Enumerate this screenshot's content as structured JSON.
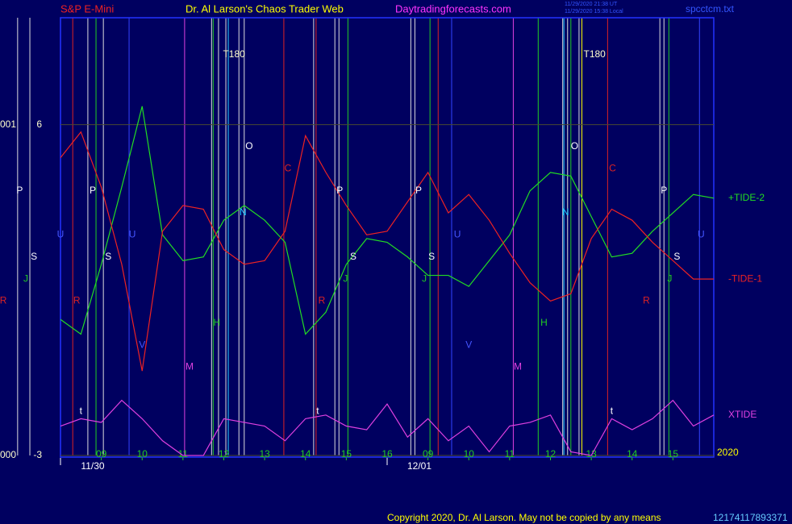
{
  "chart_data": {
    "type": "line",
    "header": {
      "left": "S&P E-Mini",
      "center": "Dr. Al Larson's Chaos Trader Web",
      "site": "Daytradingforecasts.com",
      "time_ut": "11/29/2020 21:38 UT",
      "time_local": "11/29/2020 15:38 Local",
      "file": "spcctcm.txt"
    },
    "copyright": "Copyright 2020, Dr. Al Larson. May not be copied by any means",
    "footer_code": "12174117893371",
    "year_label": "2020",
    "x": [
      0,
      0.5,
      1,
      1.5,
      2,
      2.5,
      3,
      3.5,
      4,
      4.5,
      5,
      5.5,
      6,
      6.5,
      7,
      7.5,
      8,
      8.5,
      9,
      9.5,
      10,
      10.5,
      11,
      11.5,
      12,
      12.5,
      13,
      13.5,
      14,
      14.5,
      15,
      15.5,
      16
    ],
    "series": [
      {
        "name": "+TIDE-2",
        "color": "#22dd22",
        "values": [
          0.7,
          0.3,
          2.2,
          4.3,
          6.5,
          3.0,
          2.3,
          2.4,
          3.4,
          3.8,
          3.4,
          2.8,
          0.3,
          0.9,
          2.2,
          2.9,
          2.8,
          2.4,
          1.9,
          1.9,
          1.6,
          2.3,
          3.0,
          4.2,
          4.7,
          4.6,
          3.5,
          2.4,
          2.5,
          3.1,
          3.6,
          4.1,
          4.0
        ]
      },
      {
        "name": "-TIDE-1",
        "color": "#ee2222",
        "values": [
          5.1,
          5.8,
          4.3,
          2.2,
          -0.7,
          3.1,
          3.8,
          3.7,
          2.6,
          2.2,
          2.3,
          3.1,
          5.7,
          4.7,
          3.8,
          3.0,
          3.1,
          3.9,
          4.7,
          3.6,
          4.1,
          3.4,
          2.5,
          1.7,
          1.2,
          1.4,
          2.9,
          3.7,
          3.4,
          2.8,
          2.3,
          1.8,
          1.8
        ]
      },
      {
        "name": "XTIDE",
        "color": "#e040e0",
        "values": [
          -2.2,
          -2.0,
          -2.1,
          -1.5,
          -2.0,
          -2.6,
          -3.0,
          -3.0,
          -2.0,
          -2.1,
          -2.2,
          -2.6,
          -2.0,
          -1.9,
          -2.2,
          -2.3,
          -1.6,
          -2.5,
          -2.0,
          -2.6,
          -2.2,
          -2.9,
          -2.2,
          -2.1,
          -1.9,
          -2.9,
          -3.0,
          -2.0,
          -2.3,
          -2.0,
          -1.5,
          -2.2,
          -1.9
        ]
      }
    ],
    "xlim": [
      0,
      16
    ],
    "xticks": [
      {
        "value": 1,
        "label": "09"
      },
      {
        "value": 2,
        "label": "10"
      },
      {
        "value": 3,
        "label": "11"
      },
      {
        "value": 4,
        "label": "12"
      },
      {
        "value": 5,
        "label": "13"
      },
      {
        "value": 6,
        "label": "14"
      },
      {
        "value": 7,
        "label": "15"
      },
      {
        "value": 8,
        "label": "16"
      },
      {
        "value": 9,
        "label": "09"
      },
      {
        "value": 10,
        "label": "10"
      },
      {
        "value": 11,
        "label": "11"
      },
      {
        "value": 12,
        "label": "12"
      },
      {
        "value": 13,
        "label": "13"
      },
      {
        "value": 14,
        "label": "14"
      },
      {
        "value": 15,
        "label": "15"
      }
    ],
    "date_ticks": [
      {
        "value": 0,
        "label": "11/30"
      },
      {
        "value": 8,
        "label": "12/01"
      }
    ],
    "ylim": [
      -3,
      9
    ],
    "yticks": [
      -3,
      6
    ],
    "left_labels": [
      {
        "text": "000",
        "y": -3
      },
      {
        "text": "001",
        "y": 6
      }
    ],
    "grid": true,
    "vlines": [
      {
        "x": -1.05,
        "color": "#dddddd"
      },
      {
        "x": -0.75,
        "color": "#dddddd"
      },
      {
        "x": 0.67,
        "color": "#dddddd"
      },
      {
        "x": 1.05,
        "color": "#dddddd"
      },
      {
        "x": 3.7,
        "color": "#dddddd"
      },
      {
        "x": 3.87,
        "color": "#dddddd"
      },
      {
        "x": 4.05,
        "color": "#dddddd"
      },
      {
        "x": 4.37,
        "color": "#dddddd"
      },
      {
        "x": 4.5,
        "color": "#dddddd"
      },
      {
        "x": 6.2,
        "color": "#dddddd"
      },
      {
        "x": 6.72,
        "color": "#dddddd"
      },
      {
        "x": 6.82,
        "color": "#dddddd"
      },
      {
        "x": 8.58,
        "color": "#dddddd"
      },
      {
        "x": 8.68,
        "color": "#dddddd"
      },
      {
        "x": 12.3,
        "color": "#dddddd"
      },
      {
        "x": 12.42,
        "color": "#dddddd"
      },
      {
        "x": 12.7,
        "color": "#dddddd"
      },
      {
        "x": 14.68,
        "color": "#dddddd"
      },
      {
        "x": 14.78,
        "color": "#dddddd"
      },
      {
        "x": 12.77,
        "color": "#ffff00"
      },
      {
        "x": 0.87,
        "color": "#22cc22"
      },
      {
        "x": 3.74,
        "color": "#22cc22"
      },
      {
        "x": 7.04,
        "color": "#22cc22"
      },
      {
        "x": 9.05,
        "color": "#22cc22"
      },
      {
        "x": 11.7,
        "color": "#22cc22"
      },
      {
        "x": 12.5,
        "color": "#22cc22"
      },
      {
        "x": 14.9,
        "color": "#22cc22"
      },
      {
        "x": 0.3,
        "color": "#dd2222"
      },
      {
        "x": 5.47,
        "color": "#dd2222"
      },
      {
        "x": 6.26,
        "color": "#dd2222"
      },
      {
        "x": 9.25,
        "color": "#dd2222"
      },
      {
        "x": 13.4,
        "color": "#dd2222"
      },
      {
        "x": 1.68,
        "color": "#3344ff"
      },
      {
        "x": 9.58,
        "color": "#3344ff"
      },
      {
        "x": 15.65,
        "color": "#3344ff"
      },
      {
        "x": 3.04,
        "color": "#e040e0"
      },
      {
        "x": 11.09,
        "color": "#e040e0"
      },
      {
        "x": 4.11,
        "color": "#22ccff"
      },
      {
        "x": 12.33,
        "color": "#22ccff"
      }
    ],
    "annotations": [
      {
        "text": "P",
        "x": -1.0,
        "y": 4.2,
        "color": "#ffffff"
      },
      {
        "text": "S",
        "x": -0.65,
        "y": 2.4,
        "color": "#ffffff"
      },
      {
        "text": "J",
        "x": -0.85,
        "y": 1.8,
        "color": "#22cc22"
      },
      {
        "text": "R",
        "x": -1.4,
        "y": 1.2,
        "color": "#dd2222"
      },
      {
        "text": "U",
        "x": 0.0,
        "y": 3.0,
        "color": "#4455ff"
      },
      {
        "text": "R",
        "x": 0.4,
        "y": 1.2,
        "color": "#dd2222"
      },
      {
        "text": "P",
        "x": 0.79,
        "y": 4.2,
        "color": "#ffffff"
      },
      {
        "text": "S",
        "x": 1.17,
        "y": 2.4,
        "color": "#ffffff"
      },
      {
        "text": "U",
        "x": 1.76,
        "y": 3.0,
        "color": "#4455ff"
      },
      {
        "text": "V",
        "x": 2.0,
        "y": 0.0,
        "color": "#4455ff"
      },
      {
        "text": "t",
        "x": 0.5,
        "y": -1.8,
        "color": "#ffffff"
      },
      {
        "text": "M",
        "x": 3.16,
        "y": -0.6,
        "color": "#e040e0"
      },
      {
        "text": "H",
        "x": 3.83,
        "y": 0.6,
        "color": "#22cc22"
      },
      {
        "text": "T180",
        "x": 4.25,
        "y": 7.9,
        "color": "#ffffcc"
      },
      {
        "text": "N",
        "x": 4.47,
        "y": 3.6,
        "color": "#22ccff"
      },
      {
        "text": "O",
        "x": 4.62,
        "y": 5.4,
        "color": "#ffffff"
      },
      {
        "text": "C",
        "x": 5.57,
        "y": 4.8,
        "color": "#dd2222"
      },
      {
        "text": "R",
        "x": 6.4,
        "y": 1.2,
        "color": "#dd2222"
      },
      {
        "text": "t",
        "x": 6.3,
        "y": -1.8,
        "color": "#ffffff"
      },
      {
        "text": "P",
        "x": 6.84,
        "y": 4.2,
        "color": "#ffffff"
      },
      {
        "text": "J",
        "x": 6.98,
        "y": 1.8,
        "color": "#22cc22"
      },
      {
        "text": "S",
        "x": 7.17,
        "y": 2.4,
        "color": "#ffffff"
      },
      {
        "text": "P",
        "x": 8.77,
        "y": 4.2,
        "color": "#ffffff"
      },
      {
        "text": "J",
        "x": 8.91,
        "y": 1.8,
        "color": "#22cc22"
      },
      {
        "text": "S",
        "x": 9.09,
        "y": 2.4,
        "color": "#ffffff"
      },
      {
        "text": "U",
        "x": 9.72,
        "y": 3.0,
        "color": "#4455ff"
      },
      {
        "text": "V",
        "x": 10.0,
        "y": 0.0,
        "color": "#4455ff"
      },
      {
        "text": "M",
        "x": 11.2,
        "y": -0.6,
        "color": "#e040e0"
      },
      {
        "text": "H",
        "x": 11.84,
        "y": 0.6,
        "color": "#22cc22"
      },
      {
        "text": "N",
        "x": 12.37,
        "y": 3.6,
        "color": "#22ccff"
      },
      {
        "text": "O",
        "x": 12.59,
        "y": 5.4,
        "color": "#ffffff"
      },
      {
        "text": "T180",
        "x": 13.08,
        "y": 7.9,
        "color": "#ffffcc"
      },
      {
        "text": "C",
        "x": 13.52,
        "y": 4.8,
        "color": "#dd2222"
      },
      {
        "text": "t",
        "x": 13.5,
        "y": -1.8,
        "color": "#ffffff"
      },
      {
        "text": "R",
        "x": 14.35,
        "y": 1.2,
        "color": "#dd2222"
      },
      {
        "text": "P",
        "x": 14.78,
        "y": 4.2,
        "color": "#ffffff"
      },
      {
        "text": "J",
        "x": 14.92,
        "y": 1.8,
        "color": "#22cc22"
      },
      {
        "text": "S",
        "x": 15.1,
        "y": 2.4,
        "color": "#ffffff"
      },
      {
        "text": "U",
        "x": 15.69,
        "y": 3.0,
        "color": "#4455ff"
      }
    ]
  }
}
